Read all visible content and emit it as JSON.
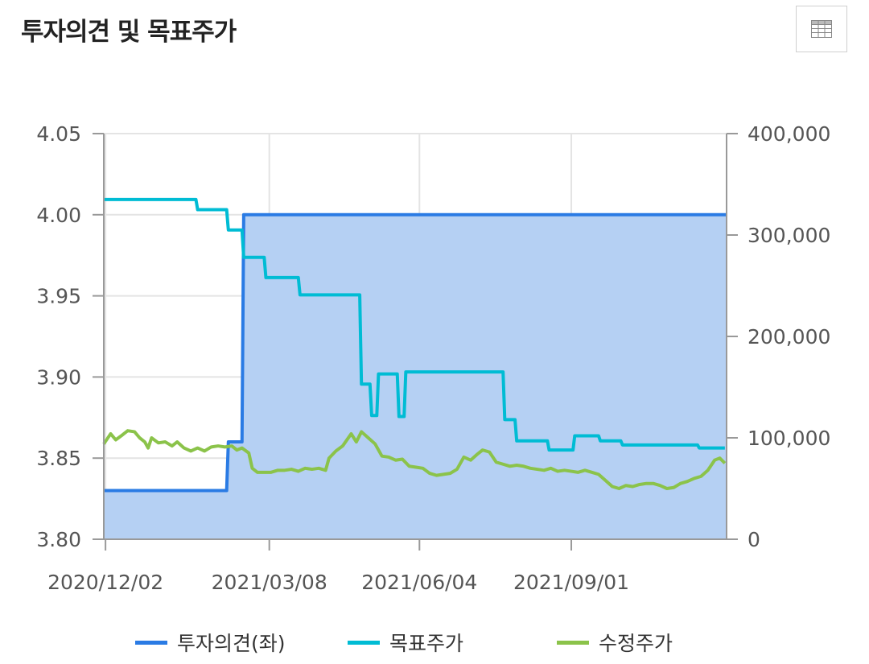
{
  "header": {
    "title": "투자의견 및 목표주가",
    "table_button_icon": "table-grid-icon"
  },
  "colors": {
    "opinion": "#2a7be4",
    "opinion_fill": "#b5d0f3",
    "target": "#00bcd4",
    "price": "#8bc34a",
    "grid": "#e4e4e4",
    "axis": "#999999"
  },
  "legend": [
    {
      "label": "투자의견(좌)",
      "color": "#2a7be4"
    },
    {
      "label": "목표주가",
      "color": "#00bcd4"
    },
    {
      "label": "수정주가",
      "color": "#8bc34a"
    }
  ],
  "chart_data": {
    "type": "line",
    "x_range": [
      "2020-12-01",
      "2021-12-01"
    ],
    "x_ticks": [
      "2020/12/02",
      "2021/03/08",
      "2021/06/04",
      "2021/09/01"
    ],
    "y_left": {
      "ticks": [
        "4.05",
        "4.00",
        "3.95",
        "3.90",
        "3.85",
        "3.80"
      ],
      "min": 3.8,
      "max": 4.05
    },
    "y_right": {
      "ticks": [
        "400,000",
        "300,000",
        "200,000",
        "100,000",
        "0"
      ],
      "min": 0,
      "max": 400000
    },
    "series": [
      {
        "name": "투자의견(좌)",
        "axis": "left",
        "style": "area-step",
        "points": [
          [
            "2020-12-01",
            3.83
          ],
          [
            "2021-02-11",
            3.83
          ],
          [
            "2021-02-12",
            3.86
          ],
          [
            "2021-02-20",
            3.86
          ],
          [
            "2021-02-21",
            4.0
          ],
          [
            "2021-12-01",
            4.0
          ]
        ]
      },
      {
        "name": "목표주가",
        "axis": "right",
        "style": "step",
        "points": [
          [
            "2020-12-01",
            335000
          ],
          [
            "2021-01-24",
            335000
          ],
          [
            "2021-01-25",
            325000
          ],
          [
            "2021-02-11",
            325000
          ],
          [
            "2021-02-12",
            305000
          ],
          [
            "2021-02-20",
            305000
          ],
          [
            "2021-02-21",
            278000
          ],
          [
            "2021-03-05",
            278000
          ],
          [
            "2021-03-06",
            258000
          ],
          [
            "2021-03-25",
            258000
          ],
          [
            "2021-03-26",
            241000
          ],
          [
            "2021-04-30",
            241000
          ],
          [
            "2021-05-01",
            153000
          ],
          [
            "2021-05-06",
            153000
          ],
          [
            "2021-05-07",
            122000
          ],
          [
            "2021-05-10",
            122000
          ],
          [
            "2021-05-11",
            163000
          ],
          [
            "2021-05-22",
            163000
          ],
          [
            "2021-05-23",
            121000
          ],
          [
            "2021-05-26",
            121000
          ],
          [
            "2021-05-27",
            165000
          ],
          [
            "2021-07-23",
            165000
          ],
          [
            "2021-07-24",
            118000
          ],
          [
            "2021-07-30",
            118000
          ],
          [
            "2021-07-31",
            97000
          ],
          [
            "2021-08-18",
            97000
          ],
          [
            "2021-08-19",
            88000
          ],
          [
            "2021-09-02",
            88000
          ],
          [
            "2021-09-03",
            102000
          ],
          [
            "2021-09-17",
            102000
          ],
          [
            "2021-09-18",
            97000
          ],
          [
            "2021-09-30",
            97000
          ],
          [
            "2021-10-01",
            93000
          ],
          [
            "2021-11-14",
            93000
          ],
          [
            "2021-11-15",
            90000
          ],
          [
            "2021-11-30",
            90000
          ]
        ]
      },
      {
        "name": "수정주가",
        "axis": "right",
        "style": "line",
        "points": [
          [
            "2020-12-01",
            94000
          ],
          [
            "2020-12-05",
            104000
          ],
          [
            "2020-12-08",
            98000
          ],
          [
            "2020-12-12",
            103000
          ],
          [
            "2020-12-15",
            107000
          ],
          [
            "2020-12-19",
            106000
          ],
          [
            "2020-12-22",
            100000
          ],
          [
            "2020-12-25",
            96000
          ],
          [
            "2020-12-27",
            90000
          ],
          [
            "2020-12-29",
            100000
          ],
          [
            "2021-01-02",
            95000
          ],
          [
            "2021-01-06",
            96000
          ],
          [
            "2021-01-10",
            92000
          ],
          [
            "2021-01-13",
            96000
          ],
          [
            "2021-01-17",
            90000
          ],
          [
            "2021-01-21",
            87000
          ],
          [
            "2021-01-25",
            90000
          ],
          [
            "2021-01-29",
            87000
          ],
          [
            "2021-02-02",
            91000
          ],
          [
            "2021-02-06",
            92000
          ],
          [
            "2021-02-10",
            91000
          ],
          [
            "2021-02-14",
            92000
          ],
          [
            "2021-02-17",
            88000
          ],
          [
            "2021-02-20",
            90000
          ],
          [
            "2021-02-24",
            85000
          ],
          [
            "2021-02-26",
            70000
          ],
          [
            "2021-03-01",
            66000
          ],
          [
            "2021-03-05",
            66000
          ],
          [
            "2021-03-09",
            66000
          ],
          [
            "2021-03-13",
            68000
          ],
          [
            "2021-03-17",
            68000
          ],
          [
            "2021-03-21",
            69000
          ],
          [
            "2021-03-25",
            67000
          ],
          [
            "2021-03-29",
            70000
          ],
          [
            "2021-04-02",
            69000
          ],
          [
            "2021-04-06",
            70000
          ],
          [
            "2021-04-10",
            68000
          ],
          [
            "2021-04-12",
            80000
          ],
          [
            "2021-04-16",
            87000
          ],
          [
            "2021-04-20",
            92000
          ],
          [
            "2021-04-25",
            104000
          ],
          [
            "2021-04-28",
            96000
          ],
          [
            "2021-05-01",
            106000
          ],
          [
            "2021-05-05",
            100000
          ],
          [
            "2021-05-09",
            94000
          ],
          [
            "2021-05-13",
            82000
          ],
          [
            "2021-05-17",
            81000
          ],
          [
            "2021-05-21",
            78000
          ],
          [
            "2021-05-25",
            79000
          ],
          [
            "2021-05-29",
            72000
          ],
          [
            "2021-06-02",
            71000
          ],
          [
            "2021-06-06",
            70000
          ],
          [
            "2021-06-10",
            65000
          ],
          [
            "2021-06-14",
            63000
          ],
          [
            "2021-06-18",
            64000
          ],
          [
            "2021-06-22",
            65000
          ],
          [
            "2021-06-26",
            69000
          ],
          [
            "2021-06-30",
            81000
          ],
          [
            "2021-07-04",
            78000
          ],
          [
            "2021-07-08",
            84000
          ],
          [
            "2021-07-11",
            88000
          ],
          [
            "2021-07-15",
            86000
          ],
          [
            "2021-07-19",
            76000
          ],
          [
            "2021-07-23",
            74000
          ],
          [
            "2021-07-27",
            72000
          ],
          [
            "2021-07-31",
            73000
          ],
          [
            "2021-08-04",
            72000
          ],
          [
            "2021-08-08",
            70000
          ],
          [
            "2021-08-12",
            69000
          ],
          [
            "2021-08-16",
            68000
          ],
          [
            "2021-08-20",
            70000
          ],
          [
            "2021-08-24",
            67000
          ],
          [
            "2021-08-28",
            68000
          ],
          [
            "2021-09-01",
            67000
          ],
          [
            "2021-09-05",
            66000
          ],
          [
            "2021-09-09",
            68000
          ],
          [
            "2021-09-13",
            66000
          ],
          [
            "2021-09-17",
            64000
          ],
          [
            "2021-09-21",
            58000
          ],
          [
            "2021-09-25",
            52000
          ],
          [
            "2021-09-29",
            50000
          ],
          [
            "2021-10-03",
            53000
          ],
          [
            "2021-10-07",
            52000
          ],
          [
            "2021-10-11",
            54000
          ],
          [
            "2021-10-15",
            55000
          ],
          [
            "2021-10-19",
            55000
          ],
          [
            "2021-10-23",
            53000
          ],
          [
            "2021-10-27",
            50000
          ],
          [
            "2021-10-31",
            51000
          ],
          [
            "2021-11-04",
            55000
          ],
          [
            "2021-11-08",
            57000
          ],
          [
            "2021-11-12",
            60000
          ],
          [
            "2021-11-16",
            62000
          ],
          [
            "2021-11-20",
            68000
          ],
          [
            "2021-11-24",
            78000
          ],
          [
            "2021-11-27",
            80000
          ],
          [
            "2021-11-30",
            75000
          ]
        ]
      }
    ]
  }
}
